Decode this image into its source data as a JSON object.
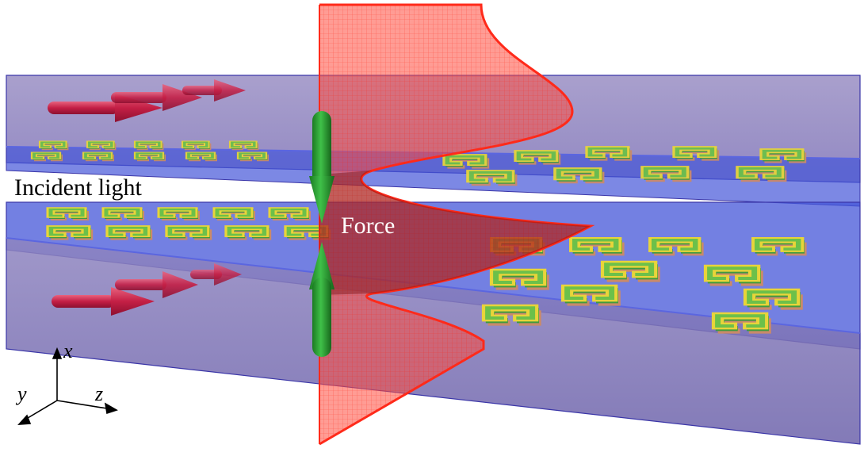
{
  "labels": {
    "incident": "Incident light",
    "force": "Force"
  },
  "axes": {
    "x": "x",
    "y": "y",
    "z": "z"
  },
  "colors": {
    "slab_fill": "#6a5fb0",
    "slab_edge": "#3b36a8",
    "substrate_fill": "#3b4fd6",
    "resonator_metal": "#e0cf3a",
    "resonator_dielectric": "#4aa04a",
    "resonator_base": "#c98a6a",
    "light_arrow": "#c8244a",
    "force_arrow": "#2aa032",
    "force_sheet": "#ff3b2f",
    "force_curve": "#ff2a1a"
  }
}
